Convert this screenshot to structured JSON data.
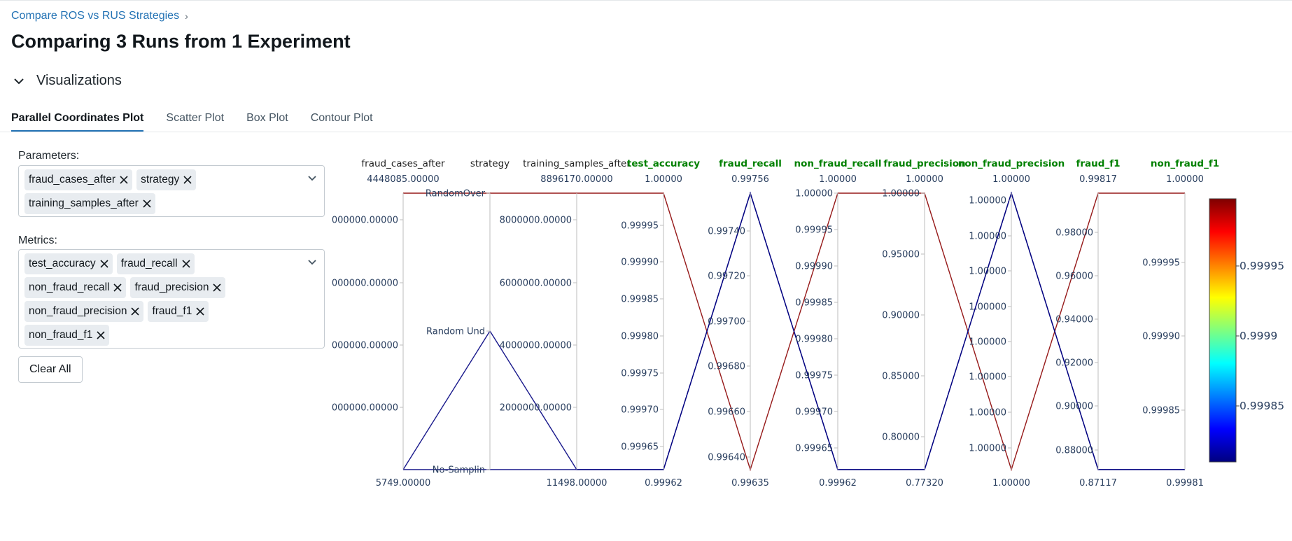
{
  "breadcrumb": {
    "label": "Compare ROS vs RUS Strategies"
  },
  "page": {
    "title": "Comparing 3 Runs from 1 Experiment"
  },
  "visualizations": {
    "label": "Visualizations"
  },
  "tabs": [
    {
      "label": "Parallel Coordinates Plot",
      "active": true
    },
    {
      "label": "Scatter Plot",
      "active": false
    },
    {
      "label": "Box Plot",
      "active": false
    },
    {
      "label": "Contour Plot",
      "active": false
    }
  ],
  "parameters": {
    "label": "Parameters:",
    "chips": [
      "fraud_cases_after",
      "strategy",
      "training_samples_after"
    ]
  },
  "metrics": {
    "label": "Metrics:",
    "chips": [
      "test_accuracy",
      "fraud_recall",
      "non_fraud_recall",
      "fraud_precision",
      "non_fraud_precision",
      "fraud_f1",
      "non_fraud_f1"
    ]
  },
  "clear_all": {
    "label": "Clear All"
  },
  "colors": {
    "param_axis_title": "#222222",
    "metric_axis_title": "#008000",
    "accent": "#2272b4"
  },
  "chart_data": {
    "type": "parallel_coordinates",
    "axes": [
      {
        "name": "fraud_cases_after",
        "kind": "parameter",
        "top_label": "4448085.00000",
        "bottom_label": "5749.00000",
        "ticks": [
          "000000.00000",
          "000000.00000",
          "000000.00000",
          "000000.00000"
        ]
      },
      {
        "name": "strategy",
        "kind": "parameter",
        "categorical": true,
        "ticks": [
          "RandomOver",
          "Random Und",
          "No-Samplin"
        ]
      },
      {
        "name": "training_samples_after",
        "kind": "parameter",
        "top_label": "8896170.00000",
        "bottom_label": "11498.00000",
        "ticks": [
          "8000000.00000",
          "6000000.00000",
          "4000000.00000",
          "2000000.00000"
        ]
      },
      {
        "name": "test_accuracy",
        "kind": "metric",
        "top_label": "1.00000",
        "bottom_label": "0.99962",
        "ticks": [
          "0.99995",
          "0.99990",
          "0.99985",
          "0.99980",
          "0.99975",
          "0.99970",
          "0.99965"
        ]
      },
      {
        "name": "fraud_recall",
        "kind": "metric",
        "top_label": "0.99756",
        "bottom_label": "0.99635",
        "ticks": [
          "0.99740",
          "0.99720",
          "0.99700",
          "0.99680",
          "0.99660",
          "0.99640"
        ]
      },
      {
        "name": "non_fraud_recall",
        "kind": "metric",
        "top_label": "1.00000",
        "bottom_label": "0.99962",
        "ticks": [
          "1.00000",
          "0.99995",
          "0.99990",
          "0.99985",
          "0.99980",
          "0.99975",
          "0.99970",
          "0.99965"
        ]
      },
      {
        "name": "fraud_precision",
        "kind": "metric",
        "top_label": "1.00000",
        "bottom_label": "0.77320",
        "ticks": [
          "1.00000",
          "0.95000",
          "0.90000",
          "0.85000",
          "0.80000"
        ]
      },
      {
        "name": "non_fraud_precision",
        "kind": "metric",
        "top_label": "1.00000",
        "bottom_label": "1.00000",
        "ticks": [
          "1.00000",
          "1.00000",
          "1.00000",
          "1.00000",
          "1.00000",
          "1.00000",
          "1.00000",
          "1.00000"
        ]
      },
      {
        "name": "fraud_f1",
        "kind": "metric",
        "top_label": "0.99817",
        "bottom_label": "0.87117",
        "ticks": [
          "0.98000",
          "0.96000",
          "0.94000",
          "0.92000",
          "0.90000",
          "0.88000"
        ]
      },
      {
        "name": "non_fraud_f1",
        "kind": "metric",
        "top_label": "1.00000",
        "bottom_label": "0.99981",
        "ticks": [
          "0.99995",
          "0.99990",
          "0.99985"
        ]
      }
    ],
    "runs": [
      {
        "name": "RandomOver",
        "color_value": 0.99999,
        "color": "#8b0000",
        "values": {
          "fraud_cases_after": 4448085,
          "strategy": "RandomOver",
          "training_samples_after": 8896170,
          "test_accuracy": 1.0,
          "fraud_recall": 0.99635,
          "non_fraud_recall": 1.0,
          "fraud_precision": 1.0,
          "non_fraud_precision": 1.0,
          "fraud_f1": 0.99817,
          "non_fraud_f1": 1.0
        }
      },
      {
        "name": "No-Sampling",
        "color_value": 0.99981,
        "color": "#00007f",
        "values": {
          "fraud_cases_after": 5749,
          "strategy": "No-Sampling",
          "training_samples_after": 11498,
          "test_accuracy": 0.99962,
          "fraud_recall": 0.99756,
          "non_fraud_recall": 0.99962,
          "fraud_precision": 0.7732,
          "non_fraud_precision": 1.0,
          "fraud_f1": 0.87117,
          "non_fraud_f1": 0.99981
        }
      },
      {
        "name": "Random Under",
        "color_value": 0.99981,
        "color": "#00007f",
        "values": {
          "fraud_cases_after": 5749,
          "strategy": "Random Und",
          "training_samples_after": 11498,
          "test_accuracy": 0.99962,
          "fraud_recall": 0.99756,
          "non_fraud_recall": 0.99962,
          "fraud_precision": 0.7732,
          "non_fraud_precision": 1.0,
          "fraud_f1": 0.87117,
          "non_fraud_f1": 0.99981
        }
      }
    ],
    "colorscale": {
      "name": "Jet",
      "ticks": [
        "0.99995",
        "0.9999",
        "0.99985"
      ]
    }
  }
}
